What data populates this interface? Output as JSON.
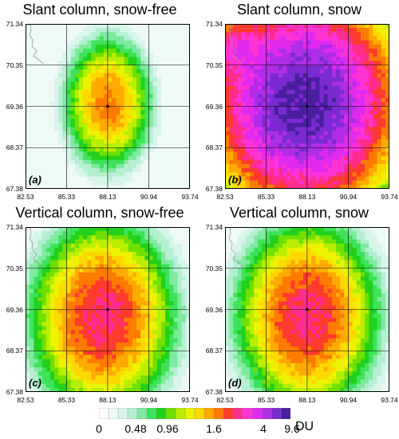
{
  "chart_data": [
    {
      "type": "heatmap",
      "title": "Slant column, snow-free",
      "panel_label": "(a)",
      "x_ticks": [
        "82.53",
        "85.33",
        "88.13",
        "90.94",
        "93.74"
      ],
      "y_ticks": [
        "71.34",
        "70.35",
        "69.36",
        "68.37",
        "67.38"
      ],
      "xlim": [
        82.53,
        93.74
      ],
      "ylim": [
        67.38,
        71.34
      ],
      "grid": true,
      "peak_location": [
        88.13,
        69.36
      ],
      "peak_value_du": 3
    },
    {
      "type": "heatmap",
      "title": "Slant column, snow",
      "panel_label": "(b)",
      "x_ticks": [
        "82.53",
        "85.33",
        "88.13",
        "90.94",
        "93.74"
      ],
      "y_ticks": [
        "71.34",
        "70.35",
        "69.36",
        "68.37",
        "67.38"
      ],
      "xlim": [
        82.53,
        93.74
      ],
      "ylim": [
        67.38,
        71.34
      ],
      "grid": true,
      "peak_location": [
        88.13,
        69.36
      ],
      "peak_value_du": 9.6
    },
    {
      "type": "heatmap",
      "title": "Vertical column, snow-free",
      "panel_label": "(c)",
      "x_ticks": [
        "82.53",
        "85.33",
        "88.13",
        "90.94",
        "93.74"
      ],
      "y_ticks": [
        "71.34",
        "70.35",
        "69.36",
        "68.37",
        "67.38"
      ],
      "xlim": [
        82.53,
        93.74
      ],
      "ylim": [
        67.38,
        71.34
      ],
      "grid": true,
      "peak_location": [
        88.13,
        69.36
      ],
      "peak_value_du": 4
    },
    {
      "type": "heatmap",
      "title": "Vertical column, snow",
      "panel_label": "(d)",
      "x_ticks": [
        "82.53",
        "85.33",
        "88.13",
        "90.94",
        "93.74"
      ],
      "y_ticks": [
        "71.34",
        "70.35",
        "69.36",
        "68.37",
        "67.38"
      ],
      "xlim": [
        82.53,
        93.74
      ],
      "ylim": [
        67.38,
        71.34
      ],
      "grid": true,
      "peak_location": [
        88.13,
        69.36
      ],
      "peak_value_du": 4
    }
  ],
  "colorbar": {
    "tick_labels": [
      "0",
      "0.48",
      "0.96",
      "1.6",
      "4",
      "9.6"
    ],
    "unit": "DU",
    "colors": [
      "#ffffff",
      "#eefaf6",
      "#d8f5ea",
      "#b5efd2",
      "#7fea9f",
      "#3fe35a",
      "#22d11c",
      "#6fe000",
      "#b8ee00",
      "#ecf200",
      "#ffd800",
      "#ffaa00",
      "#ff7b00",
      "#ff3b2e",
      "#ff2d8c",
      "#ff33d4",
      "#e12af0",
      "#b02de8",
      "#7b2ad2",
      "#4a1ea0"
    ]
  }
}
